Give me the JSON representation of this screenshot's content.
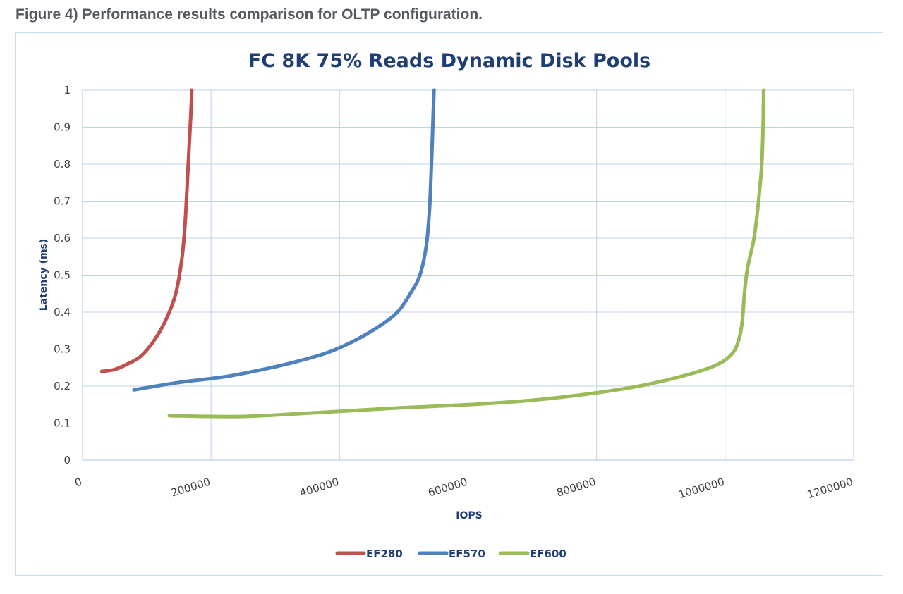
{
  "figure_caption": "Figure 4) Performance results comparison for OLTP configuration.",
  "chart_data": {
    "type": "line",
    "title": "FC 8K 75% Reads Dynamic Disk Pools",
    "xlabel": "IOPS",
    "ylabel": "Latency (ms)",
    "xlim": [
      0,
      1200000
    ],
    "ylim": [
      0,
      1
    ],
    "x_ticks": [
      "0",
      "200000",
      "400000",
      "600000",
      "800000",
      "1000000",
      "1200000"
    ],
    "y_ticks": [
      "0",
      "0.1",
      "0.2",
      "0.3",
      "0.4",
      "0.5",
      "0.6",
      "0.7",
      "0.8",
      "0.9",
      "1"
    ],
    "grid": true,
    "legend_position": "bottom",
    "series": [
      {
        "name": "EF280",
        "color": "#c0504d",
        "points": [
          [
            30000,
            0.24
          ],
          [
            50000,
            0.245
          ],
          [
            70000,
            0.26
          ],
          [
            90000,
            0.28
          ],
          [
            110000,
            0.32
          ],
          [
            130000,
            0.38
          ],
          [
            145000,
            0.45
          ],
          [
            155000,
            0.55
          ],
          [
            160000,
            0.65
          ],
          [
            163000,
            0.75
          ],
          [
            166000,
            0.85
          ],
          [
            169000,
            0.95
          ],
          [
            170000,
            1.0
          ]
        ]
      },
      {
        "name": "EF570",
        "color": "#4f81bd",
        "points": [
          [
            80000,
            0.19
          ],
          [
            150000,
            0.21
          ],
          [
            220000,
            0.225
          ],
          [
            280000,
            0.245
          ],
          [
            330000,
            0.265
          ],
          [
            380000,
            0.29
          ],
          [
            420000,
            0.32
          ],
          [
            460000,
            0.36
          ],
          [
            490000,
            0.4
          ],
          [
            510000,
            0.45
          ],
          [
            525000,
            0.5
          ],
          [
            535000,
            0.58
          ],
          [
            540000,
            0.68
          ],
          [
            543000,
            0.8
          ],
          [
            545000,
            0.9
          ],
          [
            547000,
            1.0
          ]
        ]
      },
      {
        "name": "EF600",
        "color": "#9bbb59",
        "points": [
          [
            135000,
            0.12
          ],
          [
            200000,
            0.118
          ],
          [
            250000,
            0.118
          ],
          [
            300000,
            0.122
          ],
          [
            400000,
            0.132
          ],
          [
            500000,
            0.142
          ],
          [
            600000,
            0.15
          ],
          [
            700000,
            0.162
          ],
          [
            800000,
            0.182
          ],
          [
            880000,
            0.205
          ],
          [
            950000,
            0.235
          ],
          [
            990000,
            0.26
          ],
          [
            1012000,
            0.29
          ],
          [
            1022000,
            0.33
          ],
          [
            1027000,
            0.38
          ],
          [
            1030000,
            0.45
          ],
          [
            1035000,
            0.52
          ],
          [
            1045000,
            0.6
          ],
          [
            1052000,
            0.7
          ],
          [
            1057000,
            0.8
          ],
          [
            1059000,
            0.9
          ],
          [
            1060000,
            1.0
          ]
        ]
      }
    ]
  }
}
